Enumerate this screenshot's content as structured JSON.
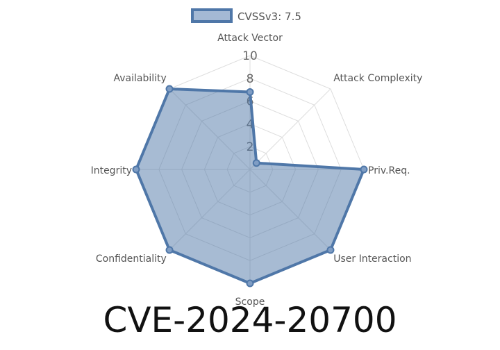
{
  "page_title": "CVE-2024-20700",
  "chart_data": {
    "type": "radar",
    "title": "",
    "axes": [
      "Attack Vector",
      "Attack Complexity",
      "Priv.Req.",
      "User Interaction",
      "Scope",
      "Confidentiality",
      "Integrity",
      "Availability"
    ],
    "series": [
      {
        "name": "CVSSv3: 7.5",
        "values": [
          6.8,
          0.8,
          10,
          10,
          10,
          10,
          10,
          10
        ]
      }
    ],
    "rlim": [
      0,
      10
    ],
    "r_ticks": [
      2,
      4,
      6,
      8,
      10
    ],
    "grid": true,
    "legend": "top-center",
    "colors": {
      "line": "#4f77a8",
      "fill": "#4f77a8",
      "grid": "#dddddd",
      "label": "#555555"
    }
  }
}
